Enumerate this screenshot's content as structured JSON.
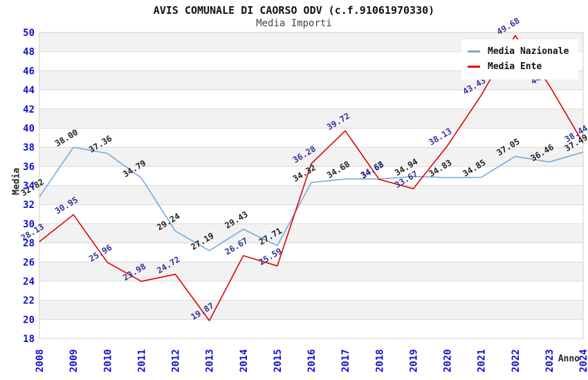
{
  "chart_data": {
    "type": "line",
    "title": "AVIS COMUNALE DI CAORSO ODV (c.f.91061970330)",
    "subtitle": "Media Importi",
    "xlabel": "Anno",
    "ylabel": "Media",
    "ylim": [
      18,
      50
    ],
    "yticks": [
      18,
      20,
      22,
      24,
      26,
      28,
      30,
      32,
      34,
      36,
      38,
      40,
      42,
      44,
      46,
      48,
      50
    ],
    "x": [
      "2008",
      "2009",
      "2010",
      "2011",
      "2012",
      "2013",
      "2014",
      "2015",
      "2016",
      "2017",
      "2018",
      "2019",
      "2020",
      "2021",
      "2022",
      "2023",
      "2024"
    ],
    "grid": true,
    "legend_position": "top-right",
    "series": [
      {
        "name": "Media Nazionale",
        "color": "#76a9dc",
        "label_color": "#222222",
        "values": [
          32.82,
          38.0,
          37.36,
          34.79,
          29.24,
          27.19,
          29.43,
          27.71,
          34.32,
          34.68,
          34.68,
          34.94,
          34.83,
          34.85,
          37.05,
          36.46,
          37.49
        ],
        "point_labels": [
          "32.82",
          "38.00",
          "37.36",
          "34.79",
          "29.24",
          "27.19",
          "29.43",
          "27.71",
          "34.32",
          "34.68",
          "34.68",
          "34.94",
          "34.83",
          "34.85",
          "37.05",
          "36.46",
          "37.49"
        ]
      },
      {
        "name": "Media Ente",
        "color": "#e00000",
        "label_color": "#333399",
        "values": [
          28.13,
          30.95,
          25.96,
          23.98,
          24.72,
          19.87,
          26.67,
          25.59,
          36.28,
          39.72,
          34.63,
          33.67,
          38.13,
          43.43,
          49.68,
          44.49,
          38.44
        ],
        "point_labels": [
          "28.13",
          "30.95",
          "25.96",
          "23.98",
          "24.72",
          "19.87",
          "26.67",
          "25.59",
          "36.28",
          "39.72",
          "34.63",
          "33.67",
          "38.13",
          "43.43",
          "49.68",
          "44.49",
          "38.44"
        ]
      }
    ],
    "colors": {
      "tick_text": "#0f0fd0",
      "gridline": "#d9d9d9",
      "stripe": "#f2f2f2",
      "plot_border": "#cccccc",
      "title_text": "#111111",
      "subtitle_text": "#444444"
    }
  }
}
